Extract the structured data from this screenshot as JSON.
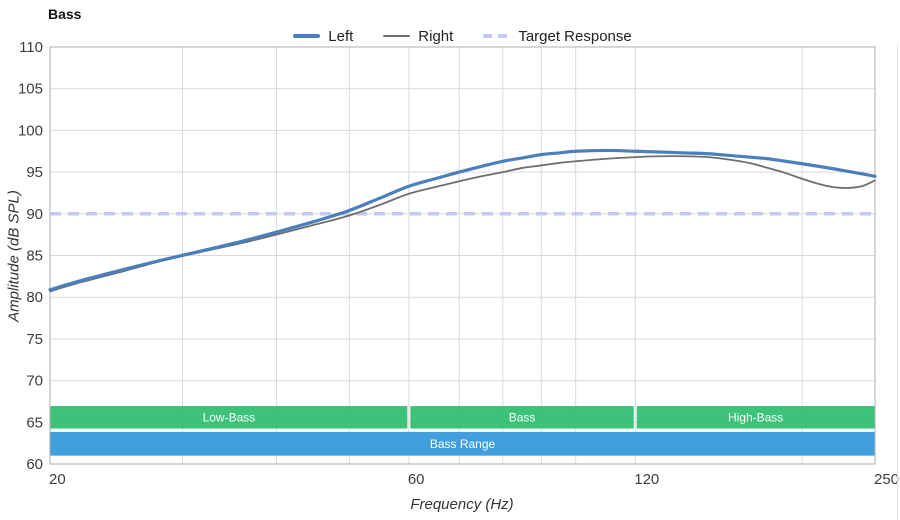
{
  "chart_data": {
    "type": "line",
    "title": "Bass",
    "xlabel": "Frequency (Hz)",
    "ylabel": "Amplitude (dB SPL)",
    "x_scale": "log",
    "xlim": [
      20,
      250
    ],
    "ylim": [
      60,
      110
    ],
    "grid": true,
    "legend_position": "top-center",
    "y_ticks": [
      110,
      105,
      100,
      95,
      90,
      85,
      80,
      75,
      70,
      65,
      60
    ],
    "x_tick_labels": [
      20,
      60,
      120,
      250
    ],
    "x_gridlines": [
      30,
      40,
      50,
      60,
      70,
      80,
      90,
      100,
      120,
      200
    ],
    "colors": {
      "grid": "#d9d9d9",
      "axis_border": "#aeaeae",
      "tick_text": "#3d3d3d",
      "band_text": "#ffffff",
      "band_green": "#2ebd6f",
      "band_blue": "#3398db",
      "left_line": "#4a7ebc",
      "right_line": "#6e6e6e",
      "target_line": "#c5c7f4"
    },
    "x": [
      20,
      22,
      25,
      28,
      32,
      36,
      40,
      45,
      50,
      55,
      60,
      65,
      70,
      75,
      80,
      85,
      90,
      95,
      100,
      110,
      120,
      130,
      140,
      150,
      160,
      170,
      180,
      190,
      200,
      210,
      220,
      230,
      240,
      250
    ],
    "series": [
      {
        "name": "Left",
        "color": "#4a7ebc",
        "width": 3.2,
        "style": "solid",
        "values": [
          80.9,
          82.0,
          83.3,
          84.4,
          85.6,
          86.7,
          87.8,
          89.1,
          90.4,
          91.9,
          93.3,
          94.2,
          95.0,
          95.7,
          96.3,
          96.7,
          97.1,
          97.3,
          97.5,
          97.6,
          97.5,
          97.4,
          97.3,
          97.2,
          97.0,
          96.8,
          96.6,
          96.3,
          96.0,
          95.7,
          95.4,
          95.1,
          94.8,
          94.5
        ]
      },
      {
        "name": "Right",
        "color": "#6e6e6e",
        "width": 1.8,
        "style": "solid",
        "values": [
          80.7,
          81.8,
          83.1,
          84.3,
          85.5,
          86.5,
          87.5,
          88.7,
          89.8,
          91.1,
          92.4,
          93.2,
          93.9,
          94.5,
          95.0,
          95.5,
          95.8,
          96.1,
          96.3,
          96.6,
          96.8,
          96.9,
          96.9,
          96.8,
          96.5,
          96.1,
          95.5,
          94.9,
          94.2,
          93.6,
          93.2,
          93.1,
          93.3,
          94.0
        ]
      },
      {
        "name": "Target Response",
        "color": "#c5c7f4",
        "width": 3.5,
        "style": "dashed",
        "dash": [
          11,
          7
        ],
        "constant": 90
      }
    ],
    "bands": [
      {
        "label": "Low-Bass",
        "x1": 20,
        "x2": 60,
        "y1": 64.25,
        "y2": 66.95,
        "color": "#2ebd6f"
      },
      {
        "label": "Bass",
        "x1": 60,
        "x2": 120,
        "y1": 64.25,
        "y2": 66.95,
        "color": "#2ebd6f"
      },
      {
        "label": "High-Bass",
        "x1": 120,
        "x2": 250,
        "y1": 64.25,
        "y2": 66.95,
        "color": "#2ebd6f"
      },
      {
        "label": "Bass Range",
        "x1": 20,
        "x2": 250,
        "y1": 61.0,
        "y2": 63.85,
        "color": "#3398db"
      }
    ]
  }
}
